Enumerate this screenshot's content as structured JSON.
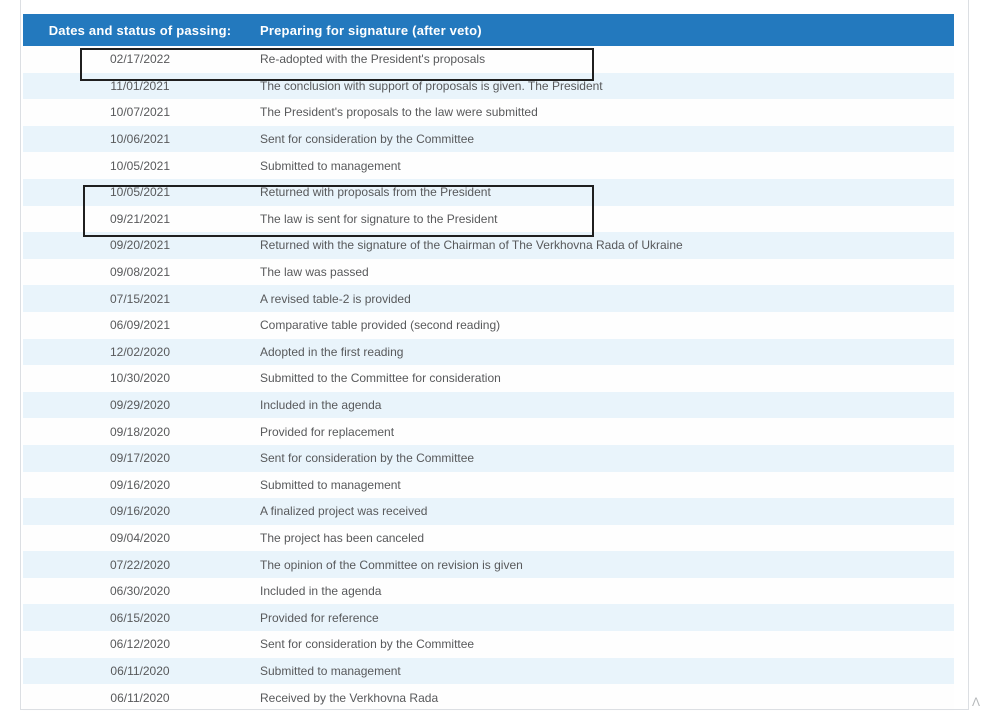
{
  "table": {
    "columns": [
      {
        "label": "Dates and status of passing:"
      },
      {
        "label": "Preparing for signature (after veto)"
      }
    ],
    "rows": [
      {
        "date": "02/17/2022",
        "status": "Re-adopted with the President's proposals"
      },
      {
        "date": "11/01/2021",
        "status": "The conclusion with support of proposals is given. The President"
      },
      {
        "date": "10/07/2021",
        "status": "The President's proposals to the law were submitted"
      },
      {
        "date": "10/06/2021",
        "status": "Sent for consideration by the Committee"
      },
      {
        "date": "10/05/2021",
        "status": "Submitted to management"
      },
      {
        "date": "10/05/2021",
        "status": "Returned with proposals from the President"
      },
      {
        "date": "09/21/2021",
        "status": "The law is sent for signature to the President"
      },
      {
        "date": "09/20/2021",
        "status": "Returned with the signature of the Chairman of The Verkhovna Rada of Ukraine"
      },
      {
        "date": "09/08/2021",
        "status": "The law was passed"
      },
      {
        "date": "07/15/2021",
        "status": "A revised table-2 is provided"
      },
      {
        "date": "06/09/2021",
        "status": "Comparative table provided (second reading)"
      },
      {
        "date": "12/02/2020",
        "status": "Adopted in the first reading"
      },
      {
        "date": "10/30/2020",
        "status": "Submitted to the Committee for consideration"
      },
      {
        "date": "09/29/2020",
        "status": "Included in the agenda"
      },
      {
        "date": "09/18/2020",
        "status": "Provided for replacement"
      },
      {
        "date": "09/17/2020",
        "status": "Sent for consideration by the Committee"
      },
      {
        "date": "09/16/2020",
        "status": "Submitted to management"
      },
      {
        "date": "09/16/2020",
        "status": "A finalized project was received"
      },
      {
        "date": "09/04/2020",
        "status": "The project has been canceled"
      },
      {
        "date": "07/22/2020",
        "status": "The opinion of the Committee on revision is given"
      },
      {
        "date": "06/30/2020",
        "status": "Included in the agenda"
      },
      {
        "date": "06/15/2020",
        "status": "Provided for reference"
      },
      {
        "date": "06/12/2020",
        "status": "Sent for consideration by the Committee"
      },
      {
        "date": "06/11/2020",
        "status": "Submitted to management"
      },
      {
        "date": "06/11/2020",
        "status": "Received by the Verkhovna Rada"
      }
    ]
  },
  "annotations": {
    "corner_glyph": "Λ",
    "highlighted_rows": "row 1; rows 6-7"
  },
  "colors": {
    "header_bg": "#2379be",
    "header_text": "#ffffff",
    "row_alt_bg": "#e9f4fb",
    "row_text": "#58595b",
    "frame_border": "#dcdfe3",
    "highlight_border": "#1f1f1f",
    "corner_glyph_color": "#b5b8ba"
  }
}
